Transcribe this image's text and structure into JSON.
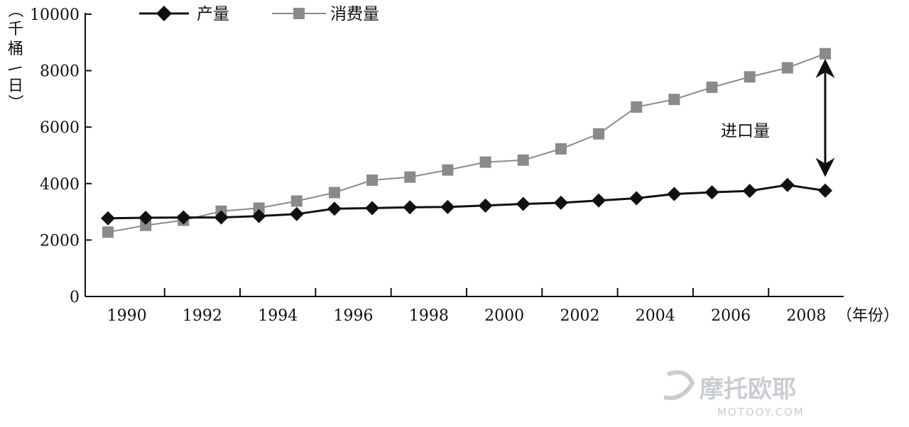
{
  "chart_data": {
    "type": "line",
    "x": [
      1990,
      1991,
      1992,
      1993,
      1994,
      1995,
      1996,
      1997,
      1998,
      1999,
      2000,
      2001,
      2002,
      2003,
      2004,
      2005,
      2006,
      2007,
      2008,
      2009
    ],
    "x_tick_labels": [
      "1990",
      "1992",
      "1994",
      "1996",
      "1998",
      "2000",
      "2002",
      "2004",
      "2006",
      "2008"
    ],
    "x_unit": "（年份）",
    "ylabel": "（千桶/日）",
    "ylabel_chars": [
      "（",
      "千",
      "桶",
      "/",
      "日",
      "）"
    ],
    "ylim": [
      0,
      10000
    ],
    "y_ticks": [
      0,
      2000,
      4000,
      6000,
      8000,
      10000
    ],
    "grid": false,
    "legend_position": "top-left",
    "series": [
      {
        "name": "产量",
        "marker": "diamond",
        "color": "#111111",
        "values": [
          2770,
          2790,
          2800,
          2800,
          2850,
          2920,
          3110,
          3130,
          3160,
          3170,
          3220,
          3280,
          3320,
          3400,
          3480,
          3630,
          3690,
          3740,
          3950,
          3750
        ]
      },
      {
        "name": "消费量",
        "marker": "square",
        "color": "#8a8a8a",
        "values": [
          2280,
          2520,
          2700,
          3020,
          3130,
          3380,
          3680,
          4120,
          4230,
          4480,
          4760,
          4830,
          5230,
          5760,
          6710,
          6980,
          7410,
          7780,
          8100,
          8600
        ]
      }
    ],
    "annotations": [
      {
        "text": "进口量",
        "type": "double-arrow",
        "x": 2009,
        "from": 3950,
        "to": 8350
      }
    ]
  },
  "watermark": {
    "main": "摩托欧耶",
    "sub": "MOTOOY.COM"
  }
}
